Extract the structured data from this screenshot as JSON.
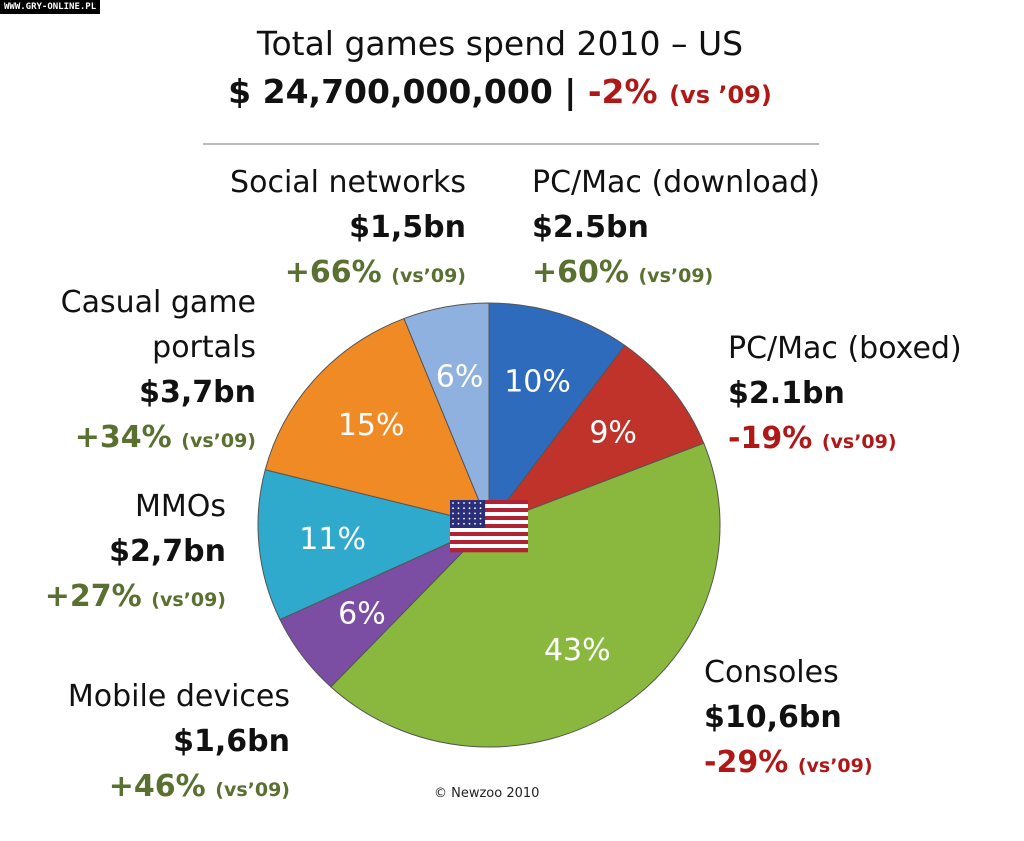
{
  "watermark": "WWW.GRY-ONLINE.PL",
  "title": "Total games spend 2010 – US",
  "subtitle_total": "$ 24,700,000,000 |",
  "subtitle_change": "-2%",
  "subtitle_vs": "(vs ’09)",
  "copyright": "© Newzoo 2010",
  "chart_data": {
    "type": "pie",
    "title": "Total games spend 2010 – US",
    "slices": [
      {
        "name": "PC/Mac (download)",
        "percent": 10,
        "label": "10%",
        "value": "$2.5bn",
        "change": "+60%",
        "vs": "(vs’09)",
        "color": "#2e6bbd",
        "trend": "up"
      },
      {
        "name": "PC/Mac (boxed)",
        "percent": 9,
        "label": "9%",
        "value": "$2.1bn",
        "change": "-19%",
        "vs": "(vs’09)",
        "color": "#c0332b",
        "trend": "down"
      },
      {
        "name": "Consoles",
        "percent": 43,
        "label": "43%",
        "value": "$10,6bn",
        "change": "-29%",
        "vs": "(vs’09)",
        "color": "#8ab83e",
        "trend": "down"
      },
      {
        "name": "Mobile devices",
        "percent": 6,
        "label": "6%",
        "value": "$1,6bn",
        "change": "+46%",
        "vs": "(vs’09)",
        "color": "#7b4ea3",
        "trend": "up"
      },
      {
        "name": "MMOs",
        "percent": 11,
        "label": "11%",
        "value": "$2,7bn",
        "change": "+27%",
        "vs": "(vs’09)",
        "color": "#2fa9cc",
        "trend": "up"
      },
      {
        "name": "Casual game portals",
        "percent": 15,
        "label": "15%",
        "value": "$3,7bn",
        "change": "+34%",
        "vs": "(vs’09)",
        "color": "#f08a24",
        "trend": "up"
      },
      {
        "name": "Social networks",
        "percent": 6,
        "label": "6%",
        "value": "$1,5bn",
        "change": "+66%",
        "vs": "(vs’09)",
        "color": "#8fb1e0",
        "trend": "up"
      }
    ]
  }
}
